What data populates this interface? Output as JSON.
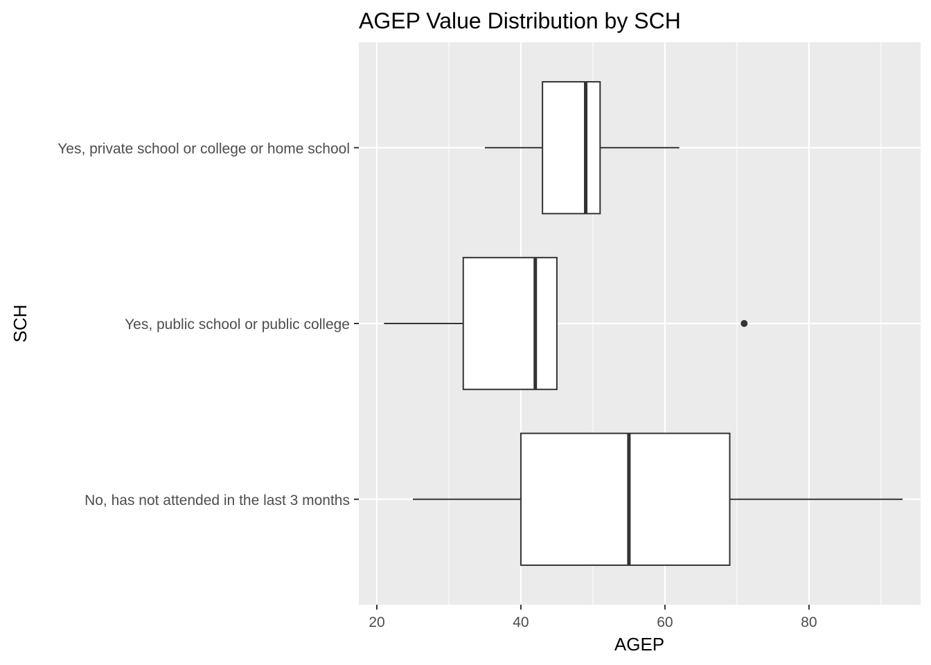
{
  "chart_data": {
    "type": "boxplot",
    "orientation": "horizontal",
    "title": "AGEP Value Distribution by SCH",
    "xlabel": "AGEP",
    "ylabel": "SCH",
    "xlim": [
      17.5,
      95.5
    ],
    "x_ticks": [
      20,
      40,
      60,
      80
    ],
    "x_minor_ticks": [
      30,
      50,
      70,
      90
    ],
    "grid": true,
    "colors": {
      "panel": "#ebebeb",
      "grid": "#ffffff",
      "box_fill": "#ffffff",
      "box_stroke": "#333333"
    },
    "categories": [
      "No, has not attended in the last 3 months",
      "Yes, public school or public college",
      "Yes, private school or college or home school"
    ],
    "boxes": [
      {
        "category": "No, has not attended in the last 3 months",
        "whisker_low": 25,
        "q1": 40,
        "median": 55,
        "q3": 69,
        "whisker_high": 93,
        "outliers": []
      },
      {
        "category": "Yes, public school or public college",
        "whisker_low": 21,
        "q1": 32,
        "median": 42,
        "q3": 45,
        "whisker_high": 45,
        "outliers": [
          71
        ]
      },
      {
        "category": "Yes, private school or college or home school",
        "whisker_low": 35,
        "q1": 43,
        "median": 49,
        "q3": 51,
        "whisker_high": 62,
        "outliers": []
      }
    ]
  }
}
